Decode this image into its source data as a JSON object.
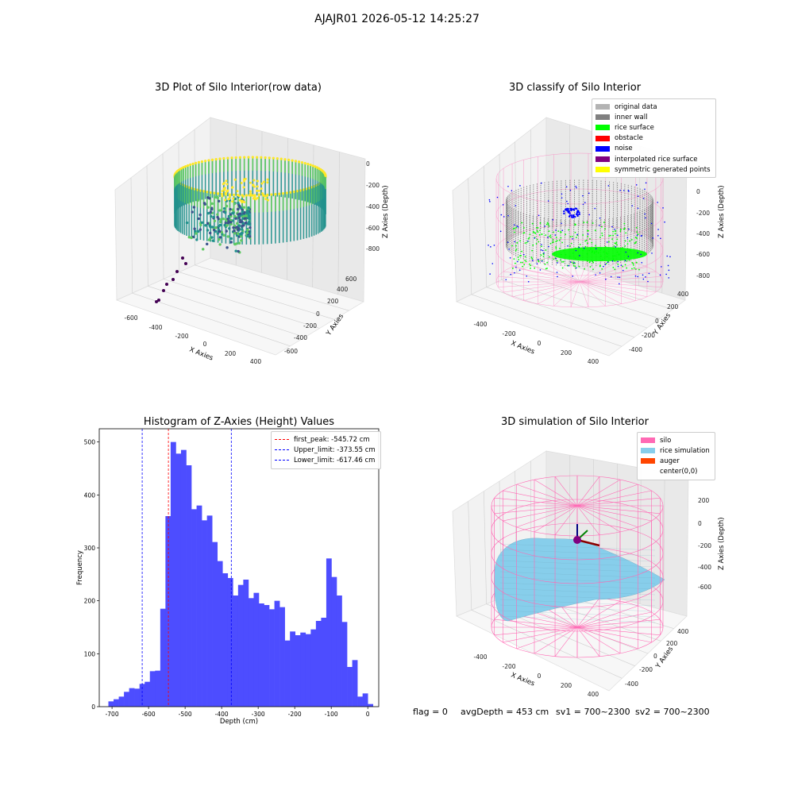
{
  "figure": {
    "suptitle": "AJAJR01 2026-05-12 14:25:27",
    "status_line": {
      "flag": "flag = 0",
      "avg_depth": "avgDepth = 453 cm",
      "sv1": "sv1 = 700~2300",
      "sv2": "sv2 = 700~2300"
    }
  },
  "chart_data": [
    {
      "id": "raw",
      "type": "scatter",
      "title": "3D Plot of Silo Interior(row data)",
      "xlabel": "X Axies",
      "ylabel": "Y Axies",
      "zlabel": "Z Axies (Depth)",
      "x_ticks": [
        "-600",
        "-400",
        "-200",
        "0",
        "200",
        "400"
      ],
      "y_ticks": [
        "-600",
        "-400",
        "-200",
        "0",
        "200",
        "400",
        "600"
      ],
      "z_ticks": [
        "0",
        "-200",
        "-400",
        "-600",
        "-800"
      ],
      "colormap": [
        "#440154",
        "#3b528b",
        "#21918c",
        "#5ec962",
        "#fde725"
      ]
    },
    {
      "id": "classify",
      "type": "scatter",
      "title": "3D classify of Silo Interior",
      "xlabel": "X Axies",
      "ylabel": "Y Axies",
      "zlabel": "Z Axies (Depth)",
      "x_ticks": [
        "-400",
        "-200",
        "0",
        "200",
        "400"
      ],
      "y_ticks": [
        "-400",
        "-200",
        "0",
        "200",
        "400"
      ],
      "z_ticks": [
        "0",
        "-200",
        "-400",
        "-600",
        "-800"
      ],
      "legend": [
        {
          "label": "original data",
          "color": "#b3b3b3"
        },
        {
          "label": "inner wall",
          "color": "#808080"
        },
        {
          "label": "rice surface",
          "color": "#00ff00"
        },
        {
          "label": "obstacle",
          "color": "#ff0000"
        },
        {
          "label": "noise",
          "color": "#0000ff"
        },
        {
          "label": "interpolated rice surface",
          "color": "#800080"
        },
        {
          "label": "symmetric generated points",
          "color": "#ffff00"
        }
      ],
      "silo_color": "#ff69b4"
    },
    {
      "id": "histogram",
      "type": "bar",
      "title": "Histogram of Z-Axies (Height) Values",
      "xlabel": "Depth (cm)",
      "ylabel": "Frequency",
      "xlim": [
        -735,
        30
      ],
      "ylim": [
        0,
        525
      ],
      "x_ticks": [
        -700,
        -600,
        -500,
        -400,
        -300,
        -200,
        -100,
        0
      ],
      "y_ticks": [
        0,
        100,
        200,
        300,
        400,
        500
      ],
      "bin_start": -710,
      "bin_width": 14.2,
      "values": [
        10,
        14,
        19,
        28,
        35,
        34,
        43,
        47,
        67,
        68,
        185,
        360,
        500,
        478,
        485,
        456,
        373,
        380,
        352,
        361,
        311,
        275,
        252,
        243,
        210,
        230,
        240,
        205,
        215,
        195,
        192,
        184,
        200,
        188,
        125,
        142,
        135,
        140,
        137,
        146,
        162,
        168,
        280,
        245,
        210,
        160,
        75,
        88,
        19,
        25,
        5
      ],
      "bar_color": "#4d4dff",
      "lines": [
        {
          "label": "first_peak: -545.72 cm",
          "x": -545.72,
          "color": "#ff0000"
        },
        {
          "label": "Upper_limit: -373.55 cm",
          "x": -373.55,
          "color": "#0000ff"
        },
        {
          "label": "Lower_limit: -617.46 cm",
          "x": -617.46,
          "color": "#0000ff"
        }
      ]
    },
    {
      "id": "simulation",
      "type": "scatter",
      "title": "3D simulation of Silo Interior",
      "xlabel": "X Axies",
      "ylabel": "Y Axies",
      "zlabel": "Z Axies (Depth)",
      "x_ticks": [
        "-400",
        "-200",
        "0",
        "200",
        "400"
      ],
      "y_ticks": [
        "-400",
        "-200",
        "0",
        "200",
        "400"
      ],
      "z_ticks": [
        "200",
        "0",
        "-200",
        "-400",
        "-600"
      ],
      "legend": [
        {
          "label": "silo",
          "color": "#ff69b4"
        },
        {
          "label": "rice simulation",
          "color": "#87ceeb"
        },
        {
          "label": "auger",
          "color": "#ff4500"
        },
        {
          "label": "center(0,0)",
          "color": ""
        }
      ]
    }
  ]
}
